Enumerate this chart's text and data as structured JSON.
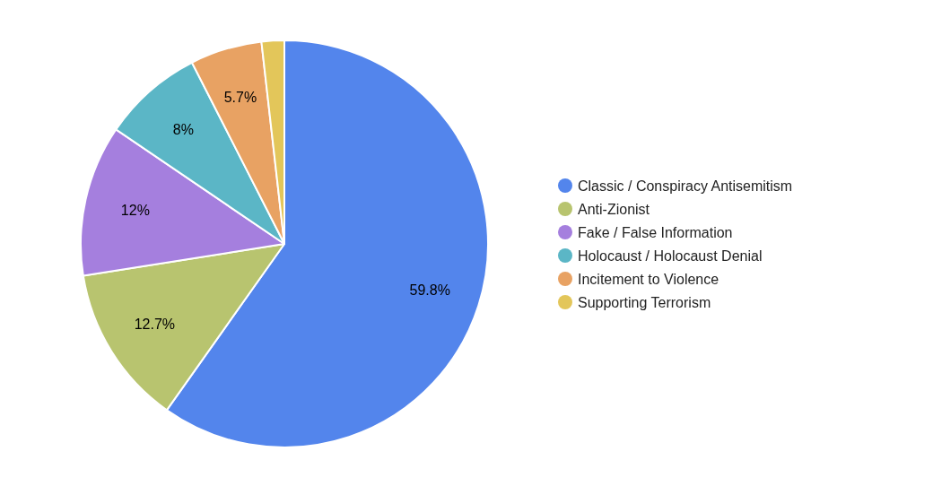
{
  "chart_data": {
    "type": "pie",
    "categories": [
      "Classic / Conspiracy Antisemitism",
      "Anti-Zionist",
      "Fake / False Information",
      "Holocaust / Holocaust Denial",
      "Incitement to Violence",
      "Supporting Terrorism"
    ],
    "values": [
      59.8,
      12.7,
      12,
      8,
      5.7,
      1.8
    ],
    "colors": [
      "#5385ec",
      "#b8c46f",
      "#a57fde",
      "#5bb6c6",
      "#e8a263",
      "#e3c65a"
    ],
    "value_labels": [
      "59.8%",
      "12.7%",
      "12%",
      "8%",
      "5.7%",
      null
    ],
    "legend": "right"
  }
}
